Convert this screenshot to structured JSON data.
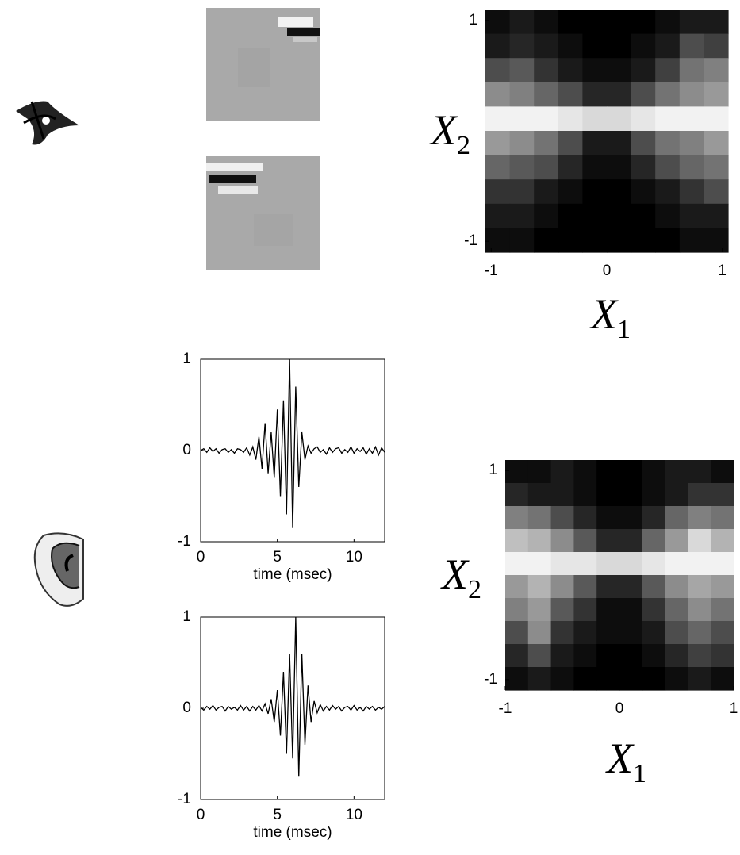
{
  "chart_data": [
    {
      "type": "heatmap",
      "colormap": "gray",
      "xlim": [
        -1.05,
        1.05
      ],
      "ylim": [
        -1.1,
        1.1
      ],
      "xticks": [
        -1,
        0,
        1
      ],
      "yticks": [
        -1,
        1
      ],
      "xlabel": {
        "symbol": "X",
        "subscript": "1"
      },
      "ylabel": {
        "symbol": "X",
        "subscript": "2"
      },
      "z": [
        [
          0.05,
          0.1,
          0.05,
          0,
          0,
          0,
          0,
          0.05,
          0.1,
          0.1
        ],
        [
          0.1,
          0.15,
          0.1,
          0.05,
          0,
          0,
          0.05,
          0.1,
          0.3,
          0.25
        ],
        [
          0.3,
          0.35,
          0.2,
          0.1,
          0.05,
          0.05,
          0.1,
          0.25,
          0.45,
          0.5
        ],
        [
          0.55,
          0.5,
          0.4,
          0.3,
          0.15,
          0.15,
          0.3,
          0.45,
          0.55,
          0.6
        ],
        [
          0.95,
          0.95,
          0.95,
          0.9,
          0.85,
          0.85,
          0.9,
          0.95,
          0.95,
          0.95
        ],
        [
          0.6,
          0.55,
          0.45,
          0.3,
          0.1,
          0.1,
          0.3,
          0.45,
          0.5,
          0.6
        ],
        [
          0.4,
          0.35,
          0.3,
          0.15,
          0.05,
          0.05,
          0.15,
          0.3,
          0.4,
          0.45
        ],
        [
          0.2,
          0.2,
          0.1,
          0.05,
          0,
          0,
          0.05,
          0.1,
          0.2,
          0.3
        ],
        [
          0.1,
          0.1,
          0.05,
          0,
          0,
          0,
          0,
          0.05,
          0.1,
          0.1
        ],
        [
          0.05,
          0.05,
          0,
          0,
          0,
          0,
          0,
          0,
          0.05,
          0.05
        ]
      ]
    },
    {
      "type": "line",
      "color": "#000000",
      "xlim": [
        0,
        12
      ],
      "ylim": [
        -1,
        1
      ],
      "xticks": [
        0,
        5,
        10
      ],
      "yticks": [
        -1,
        0,
        1
      ],
      "xlabel": "time (msec)",
      "x": [
        0,
        0.2,
        0.4,
        0.6,
        0.8,
        1,
        1.2,
        1.4,
        1.6,
        1.8,
        2,
        2.2,
        2.4,
        2.6,
        2.8,
        3,
        3.2,
        3.4,
        3.6,
        3.8,
        4,
        4.2,
        4.4,
        4.6,
        4.8,
        5,
        5.2,
        5.4,
        5.6,
        5.8,
        6,
        6.2,
        6.4,
        6.6,
        6.8,
        7,
        7.2,
        7.4,
        7.6,
        7.8,
        8,
        8.2,
        8.4,
        8.6,
        8.8,
        9,
        9.2,
        9.4,
        9.6,
        9.8,
        10,
        10.2,
        10.4,
        10.6,
        10.8,
        11,
        11.2,
        11.4,
        11.6,
        11.8,
        12
      ],
      "values": [
        0,
        0.02,
        -0.02,
        0.03,
        -0.01,
        0.02,
        -0.03,
        0.01,
        0.02,
        -0.02,
        0.01,
        -0.03,
        0.02,
        0.01,
        -0.02,
        0.03,
        -0.05,
        0.04,
        -0.1,
        0.15,
        -0.2,
        0.3,
        -0.25,
        0.2,
        -0.3,
        0.45,
        -0.5,
        0.55,
        -0.7,
        1.0,
        -0.85,
        0.7,
        -0.4,
        0.2,
        -0.1,
        0.05,
        -0.03,
        0.02,
        0.04,
        -0.02,
        0.01,
        -0.04,
        0.03,
        -0.02,
        0.02,
        0.03,
        -0.03,
        0.01,
        -0.02,
        0.04,
        -0.03,
        0.02,
        -0.01,
        0.03,
        -0.04,
        0.02,
        -0.03,
        0.04,
        -0.05,
        0.03,
        -0.02
      ]
    },
    {
      "type": "line",
      "color": "#000000",
      "xlim": [
        0,
        12
      ],
      "ylim": [
        -1,
        1
      ],
      "xticks": [
        0,
        5,
        10
      ],
      "yticks": [
        -1,
        0,
        1
      ],
      "xlabel": "time (msec)",
      "x": [
        0,
        0.2,
        0.4,
        0.6,
        0.8,
        1,
        1.2,
        1.4,
        1.6,
        1.8,
        2,
        2.2,
        2.4,
        2.6,
        2.8,
        3,
        3.2,
        3.4,
        3.6,
        3.8,
        4,
        4.2,
        4.4,
        4.6,
        4.8,
        5,
        5.2,
        5.4,
        5.6,
        5.8,
        6,
        6.2,
        6.4,
        6.6,
        6.8,
        7,
        7.2,
        7.4,
        7.6,
        7.8,
        8,
        8.2,
        8.4,
        8.6,
        8.8,
        9,
        9.2,
        9.4,
        9.6,
        9.8,
        10,
        10.2,
        10.4,
        10.6,
        10.8,
        11,
        11.2,
        11.4,
        11.6,
        11.8,
        12
      ],
      "values": [
        0.01,
        -0.02,
        0.02,
        -0.01,
        0.03,
        -0.02,
        0.01,
        0.02,
        -0.03,
        0.02,
        -0.01,
        0.01,
        -0.02,
        0.03,
        -0.02,
        0.02,
        -0.03,
        0.02,
        -0.02,
        0.03,
        -0.03,
        0.05,
        -0.06,
        0.1,
        -0.15,
        0.2,
        -0.3,
        0.4,
        -0.5,
        0.6,
        -0.55,
        1.0,
        -0.75,
        0.6,
        -0.4,
        0.25,
        -0.15,
        0.08,
        -0.05,
        0.04,
        -0.03,
        0.02,
        -0.02,
        0.03,
        -0.01,
        0.02,
        -0.03,
        0.01,
        0.02,
        -0.02,
        0.03,
        -0.02,
        0.01,
        -0.03,
        0.02,
        -0.01,
        0.02,
        -0.02,
        0.01,
        -0.01,
        0.02
      ]
    },
    {
      "type": "heatmap",
      "colormap": "gray",
      "xlim": [
        -1,
        1
      ],
      "ylim": [
        -1.1,
        1.1
      ],
      "xticks": [
        -1,
        0,
        1
      ],
      "yticks": [
        -1,
        1
      ],
      "xlabel": {
        "symbol": "X",
        "subscript": "1"
      },
      "ylabel": {
        "symbol": "X",
        "subscript": "2"
      },
      "z": [
        [
          0.05,
          0.05,
          0.1,
          0.05,
          0,
          0,
          0.05,
          0.1,
          0.1,
          0.05
        ],
        [
          0.15,
          0.1,
          0.1,
          0.05,
          0,
          0,
          0.05,
          0.1,
          0.2,
          0.2
        ],
        [
          0.5,
          0.45,
          0.3,
          0.15,
          0.05,
          0.05,
          0.15,
          0.4,
          0.5,
          0.45
        ],
        [
          0.75,
          0.7,
          0.55,
          0.35,
          0.15,
          0.15,
          0.4,
          0.6,
          0.85,
          0.7
        ],
        [
          0.95,
          0.95,
          0.9,
          0.9,
          0.85,
          0.85,
          0.9,
          0.95,
          0.95,
          0.95
        ],
        [
          0.6,
          0.7,
          0.55,
          0.35,
          0.15,
          0.15,
          0.35,
          0.55,
          0.65,
          0.6
        ],
        [
          0.5,
          0.6,
          0.35,
          0.2,
          0.05,
          0.05,
          0.2,
          0.4,
          0.55,
          0.45
        ],
        [
          0.3,
          0.55,
          0.2,
          0.1,
          0.05,
          0.05,
          0.1,
          0.3,
          0.4,
          0.3
        ],
        [
          0.15,
          0.3,
          0.1,
          0.05,
          0,
          0,
          0.05,
          0.15,
          0.25,
          0.2
        ],
        [
          0.05,
          0.1,
          0.05,
          0,
          0,
          0,
          0,
          0.05,
          0.1,
          0.05
        ]
      ]
    }
  ]
}
